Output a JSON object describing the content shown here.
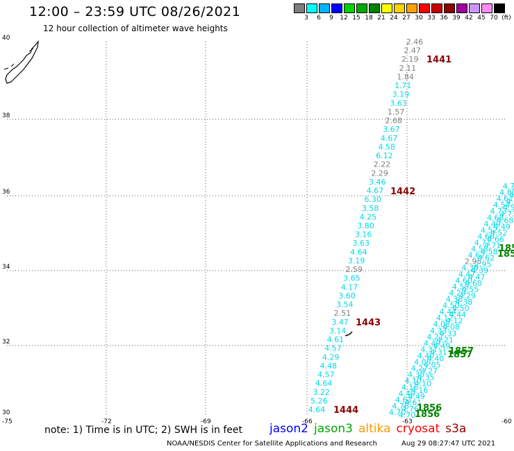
{
  "header": {
    "title": "12:00 – 23:59 UTC 08/26/2021",
    "subtitle": "12 hour collection of altimeter wave heights"
  },
  "colorbar": {
    "colors": [
      "#7f7f7f",
      "#00ffff",
      "#00b4ff",
      "#0000ff",
      "#00d200",
      "#00aa00",
      "#008200",
      "#ffff00",
      "#ffd200",
      "#ffa000",
      "#ff0000",
      "#c80000",
      "#8c0000",
      "#a000a0",
      "#c896ff",
      "#ff8cff",
      "#000000"
    ],
    "labels": [
      "3",
      "6",
      "9",
      "12",
      "15",
      "18",
      "21",
      "24",
      "27",
      "30",
      "33",
      "36",
      "39",
      "42",
      "45",
      "70",
      "(ft)"
    ]
  },
  "axes": {
    "lat_labels": [
      "40",
      "38",
      "36",
      "34",
      "32",
      "30"
    ],
    "lon_labels": [
      "-75",
      "-72",
      "-69",
      "-66",
      "-63",
      "-60"
    ]
  },
  "tracks": {
    "A": {
      "times": [
        "1441",
        "1442",
        "1443",
        "1444"
      ],
      "values": [
        "2.46",
        "2.47",
        "2.19",
        "2.11",
        "1.84",
        "1.71",
        "3.19",
        "3.63",
        "1.57",
        "2.68",
        "3.67",
        "4.67",
        "4.58",
        "6.12",
        "2.22",
        "2.29",
        "3.46",
        "4.67",
        "6.30",
        "3.58",
        "4.25",
        "3.80",
        "3.16",
        "3.63",
        "4.64",
        "3.19",
        "2.59",
        "3.65",
        "4.17",
        "3.60",
        "3.54",
        "2.51",
        "3.47",
        "3.14",
        "4.61",
        "4.57",
        "4.29",
        "4.48",
        "4.57",
        "4.64",
        "3.22",
        "5.26",
        "4.64"
      ]
    },
    "B": {
      "times": [
        "1856",
        "1856",
        "1857",
        "1857",
        "185",
        "185"
      ],
      "values": [
        "4.70",
        "4.76",
        "4.61",
        "4.49",
        "4.16",
        "4.10",
        "4.35",
        "4.27",
        "4.05",
        "4.40",
        "4.31",
        "4.49",
        "4.21",
        "4.33",
        "4.08",
        "4.12",
        "4.44",
        "4.50",
        "4.38",
        "4.29",
        "4.55",
        "4.60",
        "4.47",
        "4.39",
        "2.95",
        "4.62",
        "4.58",
        "4.71",
        "4.66",
        "4.52",
        "4.49",
        "4.68",
        "4.73",
        "4.54",
        "4.61",
        "4.80",
        "4.77"
      ]
    }
  },
  "footer": {
    "note": "note: 1) Time is in UTC; 2) SWH is in feet",
    "satellites": [
      {
        "name": "jason2",
        "color": "#0000ff"
      },
      {
        "name": "jason3",
        "color": "#00aa00"
      },
      {
        "name": "altika",
        "color": "#ff9900"
      },
      {
        "name": "cryosat",
        "color": "#ff0000"
      },
      {
        "name": "s3a",
        "color": "#8c0000"
      }
    ],
    "credit": "NOAA/NESDIS Center for Satellite Applications and Research",
    "timestamp": "Aug 29 08:27:47 UTC 2021"
  }
}
